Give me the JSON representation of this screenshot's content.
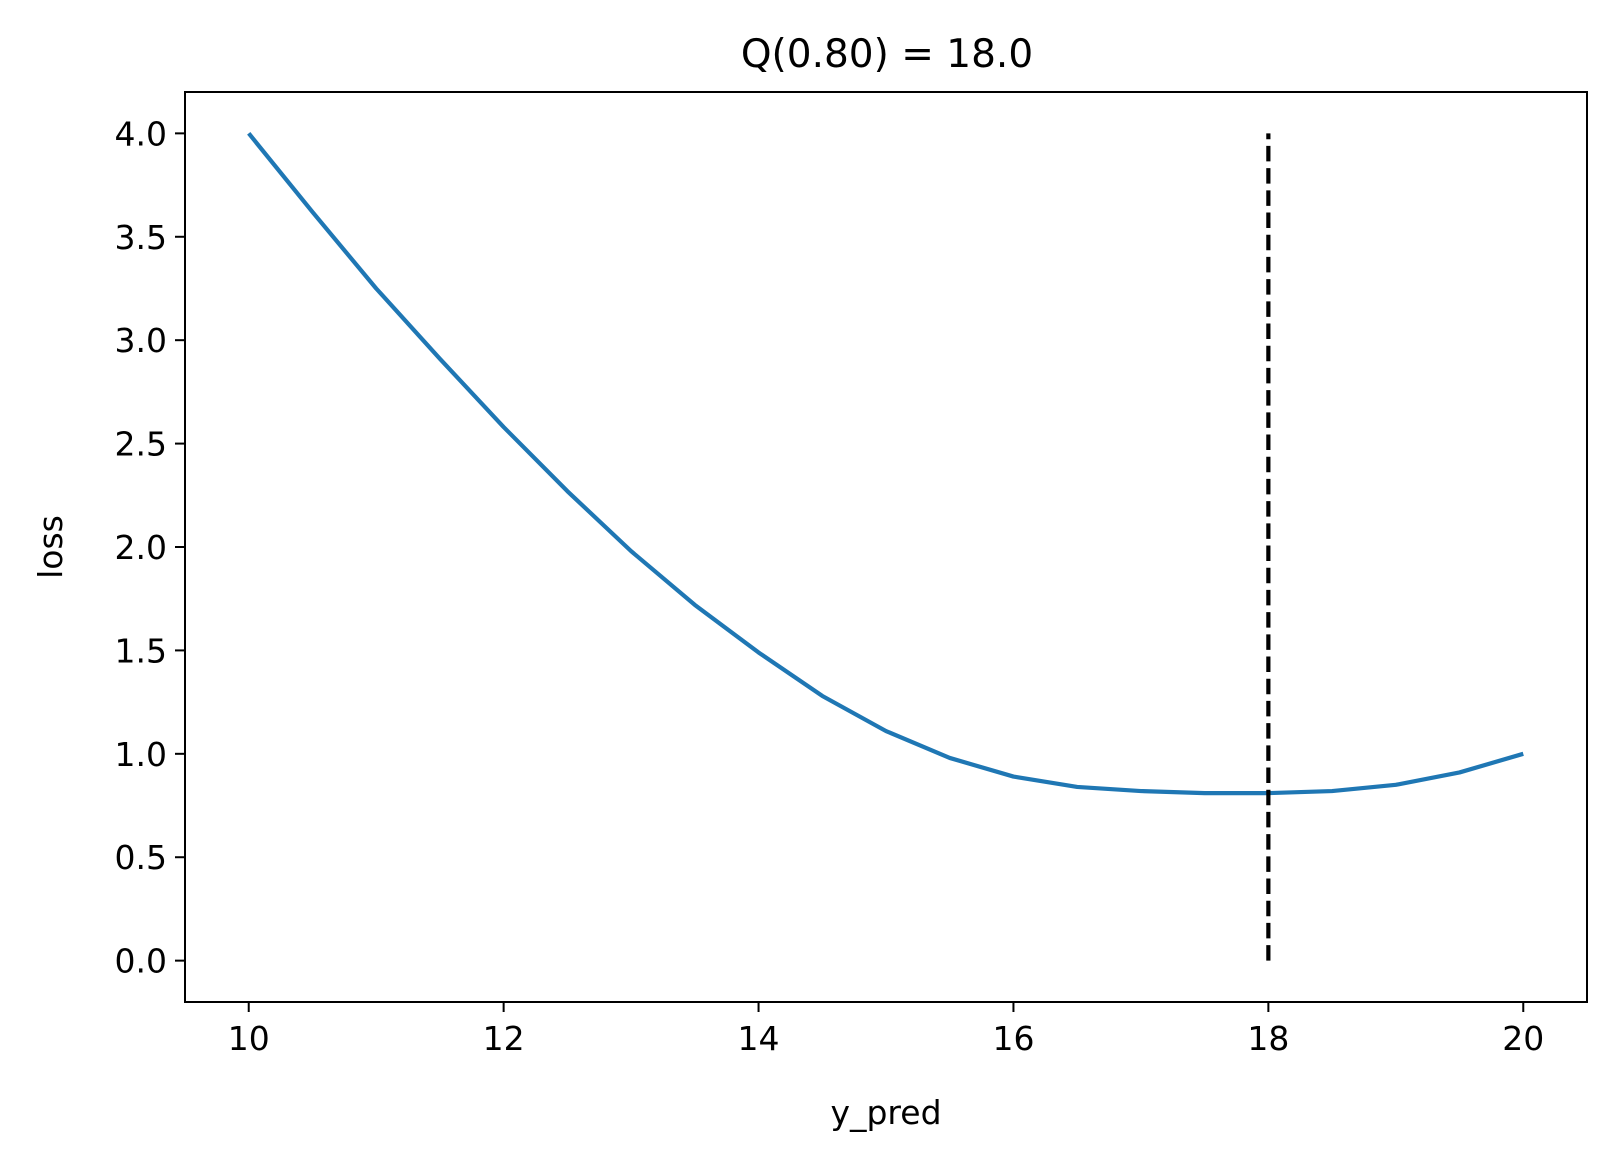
{
  "chart_data": {
    "type": "line",
    "title": "Q(0.80) = 18.0",
    "xlabel": "y_pred",
    "ylabel": "loss",
    "xlim": [
      9.5,
      20.5
    ],
    "ylim": [
      -0.2,
      4.2
    ],
    "x_ticks": [
      10,
      12,
      14,
      16,
      18,
      20
    ],
    "x_tick_labels": [
      "10",
      "12",
      "14",
      "16",
      "18",
      "20"
    ],
    "y_ticks": [
      0.0,
      0.5,
      1.0,
      1.5,
      2.0,
      2.5,
      3.0,
      3.5,
      4.0
    ],
    "y_tick_labels": [
      "0.0",
      "0.5",
      "1.0",
      "1.5",
      "2.0",
      "2.5",
      "3.0",
      "3.5",
      "4.0"
    ],
    "grid": false,
    "series": [
      {
        "color": "#1f77b4",
        "style": "solid",
        "x": [
          10,
          10.5,
          11,
          11.5,
          12,
          12.5,
          13,
          13.5,
          14,
          14.5,
          15,
          15.5,
          16,
          16.5,
          17,
          17.5,
          18,
          18.5,
          19,
          19.5,
          20
        ],
        "y": [
          4.0,
          3.62,
          3.25,
          2.91,
          2.58,
          2.27,
          1.98,
          1.72,
          1.49,
          1.28,
          1.11,
          0.98,
          0.89,
          0.84,
          0.82,
          0.81,
          0.81,
          0.82,
          0.85,
          0.91,
          1.0
        ]
      }
    ],
    "vlines": [
      {
        "x": 18,
        "ymin": 0.0,
        "ymax": 4.0,
        "color": "#000000",
        "style": "dashed"
      }
    ]
  }
}
